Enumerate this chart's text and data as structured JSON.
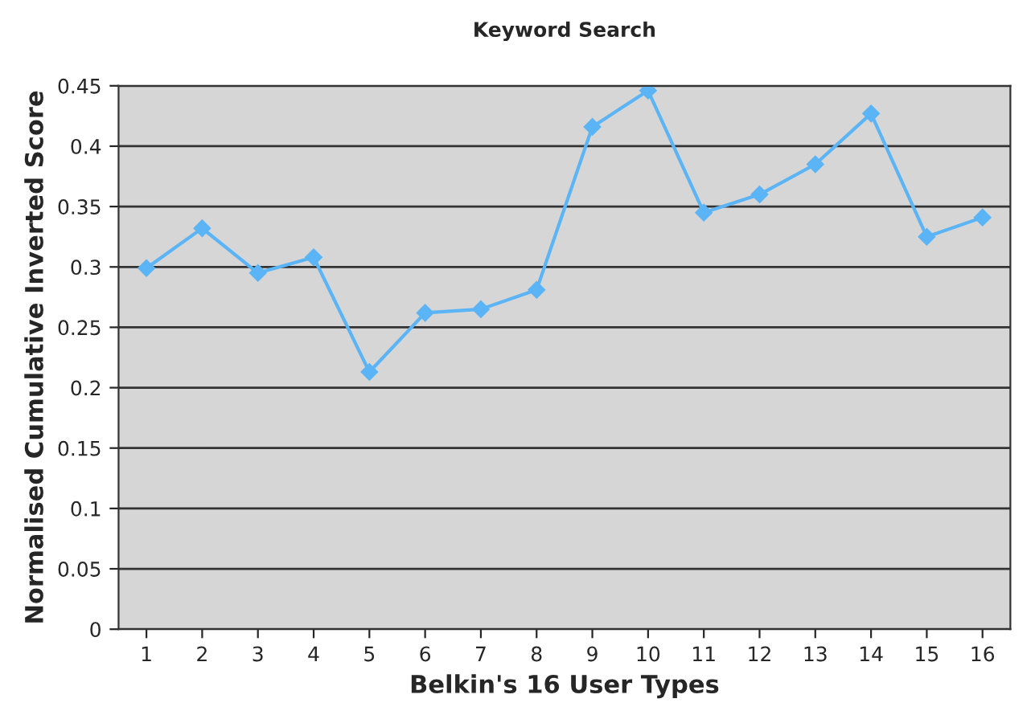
{
  "chart_data": {
    "type": "line",
    "title": "Keyword Search",
    "xlabel": "Belkin's 16 User Types",
    "ylabel": "Normalised Cumulative Inverted Score",
    "categories": [
      "1",
      "2",
      "3",
      "4",
      "5",
      "6",
      "7",
      "8",
      "9",
      "10",
      "11",
      "12",
      "13",
      "14",
      "15",
      "16"
    ],
    "series": [
      {
        "color": "#5ab4f5",
        "values": [
          0.299,
          0.332,
          0.295,
          0.308,
          0.213,
          0.262,
          0.265,
          0.281,
          0.416,
          0.446,
          0.345,
          0.36,
          0.385,
          0.427,
          0.325,
          0.341
        ]
      }
    ],
    "ylim": [
      0,
      0.45
    ],
    "yticks": [
      0,
      0.05,
      0.1,
      0.15,
      0.2,
      0.25,
      0.3,
      0.35,
      0.4,
      0.45
    ],
    "grid": "y",
    "marker": "diamond",
    "line_style": "solid"
  }
}
